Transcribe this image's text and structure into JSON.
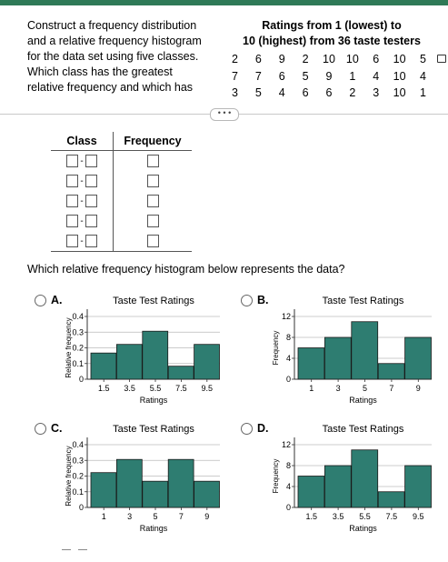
{
  "question": {
    "lines": [
      "Construct a frequency distribution",
      "and a relative frequency histogram",
      "for the data set using five classes.",
      "Which class has the greatest",
      "relative frequency and which has"
    ]
  },
  "data_panel": {
    "title_lines": [
      "Ratings from 1 (lowest) to",
      "10 (highest) from 36 taste testers"
    ],
    "rows": [
      [
        "2",
        "6",
        "9",
        "2",
        "10",
        "10",
        "6",
        "10",
        "5"
      ],
      [
        "7",
        "7",
        "6",
        "5",
        "9",
        "1",
        "4",
        "10",
        "4"
      ],
      [
        "3",
        "5",
        "4",
        "6",
        "6",
        "2",
        "3",
        "10",
        "1"
      ]
    ]
  },
  "more_button": "• • •",
  "table": {
    "headers": [
      "Class",
      "Frequency"
    ],
    "rows": 5
  },
  "prompt2": "Which relative frequency histogram below represents the data?",
  "options": [
    {
      "letter": "A.",
      "title": "Taste Test Ratings",
      "ylabel": "Relative frequency",
      "xlabel": "Ratings"
    },
    {
      "letter": "B.",
      "title": "Taste Test Ratings",
      "ylabel": "Frequency",
      "xlabel": "Ratings"
    },
    {
      "letter": "C.",
      "title": "Taste Test Ratings",
      "ylabel": "Relative frequency",
      "xlabel": "Ratings"
    },
    {
      "letter": "D.",
      "title": "Taste Test Ratings",
      "ylabel": "Frequency",
      "xlabel": "Ratings"
    }
  ],
  "colors": {
    "bar": "#2e7d71",
    "bar_border": "#1a1a1a",
    "accent": "#2f7a57"
  },
  "chart_data": [
    {
      "type": "bar",
      "title": "Taste Test Ratings",
      "xlabel": "Ratings",
      "ylabel": "Relative frequency",
      "ticks": [
        "1.5",
        "3.5",
        "5.5",
        "7.5",
        "9.5"
      ],
      "y_ticks": [
        "0",
        "0.1",
        "0.2",
        "0.3",
        "0.4"
      ],
      "ylim": [
        0,
        0.4
      ],
      "values": [
        0.167,
        0.222,
        0.306,
        0.083,
        0.222
      ]
    },
    {
      "type": "bar",
      "title": "Taste Test Ratings",
      "xlabel": "Ratings",
      "ylabel": "Frequency",
      "ticks": [
        "1",
        "3",
        "5",
        "7",
        "9"
      ],
      "y_ticks": [
        "0",
        "4",
        "8",
        "12"
      ],
      "ylim": [
        0,
        12
      ],
      "values": [
        6,
        8,
        11,
        3,
        8
      ]
    },
    {
      "type": "bar",
      "title": "Taste Test Ratings",
      "xlabel": "Ratings",
      "ylabel": "Relative frequency",
      "ticks": [
        "1",
        "3",
        "5",
        "7",
        "9"
      ],
      "y_ticks": [
        "0",
        "0.1",
        "0.2",
        "0.3",
        "0.4"
      ],
      "ylim": [
        0,
        0.4
      ],
      "values": [
        0.222,
        0.306,
        0.167,
        0.306,
        0.167
      ]
    },
    {
      "type": "bar",
      "title": "Taste Test Ratings",
      "xlabel": "Ratings",
      "ylabel": "Frequency",
      "ticks": [
        "1.5",
        "3.5",
        "5.5",
        "7.5",
        "9.5"
      ],
      "y_ticks": [
        "0",
        "4",
        "8",
        "12"
      ],
      "ylim": [
        0,
        12
      ],
      "values": [
        6,
        8,
        11,
        3,
        8
      ]
    }
  ]
}
